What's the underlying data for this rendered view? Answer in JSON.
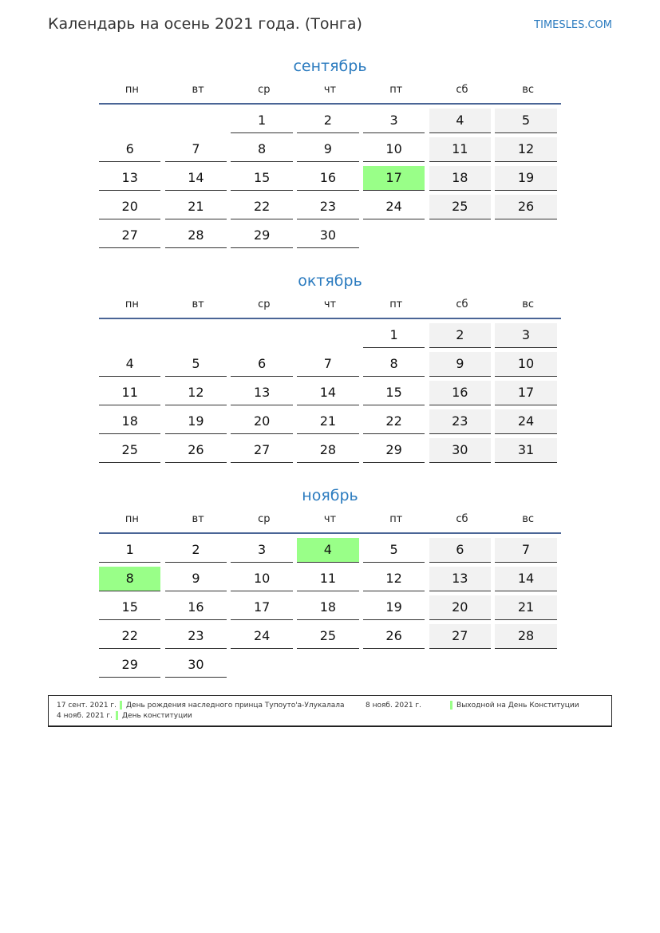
{
  "header": {
    "title": "Календарь на осень 2021 года. (Тонга)",
    "site": "TIMESLES.COM"
  },
  "weekdays": [
    "пн",
    "вт",
    "ср",
    "чт",
    "пт",
    "сб",
    "вс"
  ],
  "colors": {
    "accent": "#2b7bbf",
    "holiday": "#99ff88",
    "weekend": "#f2f2f2",
    "rule": "#4a6596"
  },
  "months": [
    {
      "name": "сентябрь",
      "weeks": [
        [
          null,
          null,
          1,
          2,
          3,
          4,
          5
        ],
        [
          6,
          7,
          8,
          9,
          10,
          11,
          12
        ],
        [
          13,
          14,
          15,
          16,
          17,
          18,
          19
        ],
        [
          20,
          21,
          22,
          23,
          24,
          25,
          26
        ],
        [
          27,
          28,
          29,
          30,
          null,
          null,
          null
        ]
      ],
      "holidays": [
        17
      ]
    },
    {
      "name": "октябрь",
      "weeks": [
        [
          null,
          null,
          null,
          null,
          1,
          2,
          3
        ],
        [
          4,
          5,
          6,
          7,
          8,
          9,
          10
        ],
        [
          11,
          12,
          13,
          14,
          15,
          16,
          17
        ],
        [
          18,
          19,
          20,
          21,
          22,
          23,
          24
        ],
        [
          25,
          26,
          27,
          28,
          29,
          30,
          31
        ]
      ],
      "holidays": []
    },
    {
      "name": "ноябрь",
      "weeks": [
        [
          1,
          2,
          3,
          4,
          5,
          6,
          7
        ],
        [
          8,
          9,
          10,
          11,
          12,
          13,
          14
        ],
        [
          15,
          16,
          17,
          18,
          19,
          20,
          21
        ],
        [
          22,
          23,
          24,
          25,
          26,
          27,
          28
        ],
        [
          29,
          30,
          null,
          null,
          null,
          null,
          null
        ]
      ],
      "holidays": [
        4,
        8
      ]
    }
  ],
  "legend": [
    {
      "date": "17 сент. 2021 г.",
      "name": "День рождения наследного принца Тупоуто'а-Улукалала"
    },
    {
      "date": "8 нояб. 2021 г.",
      "name": "Выходной на День Конституции"
    },
    {
      "date": "4 нояб. 2021 г.",
      "name": "День конституции"
    }
  ]
}
